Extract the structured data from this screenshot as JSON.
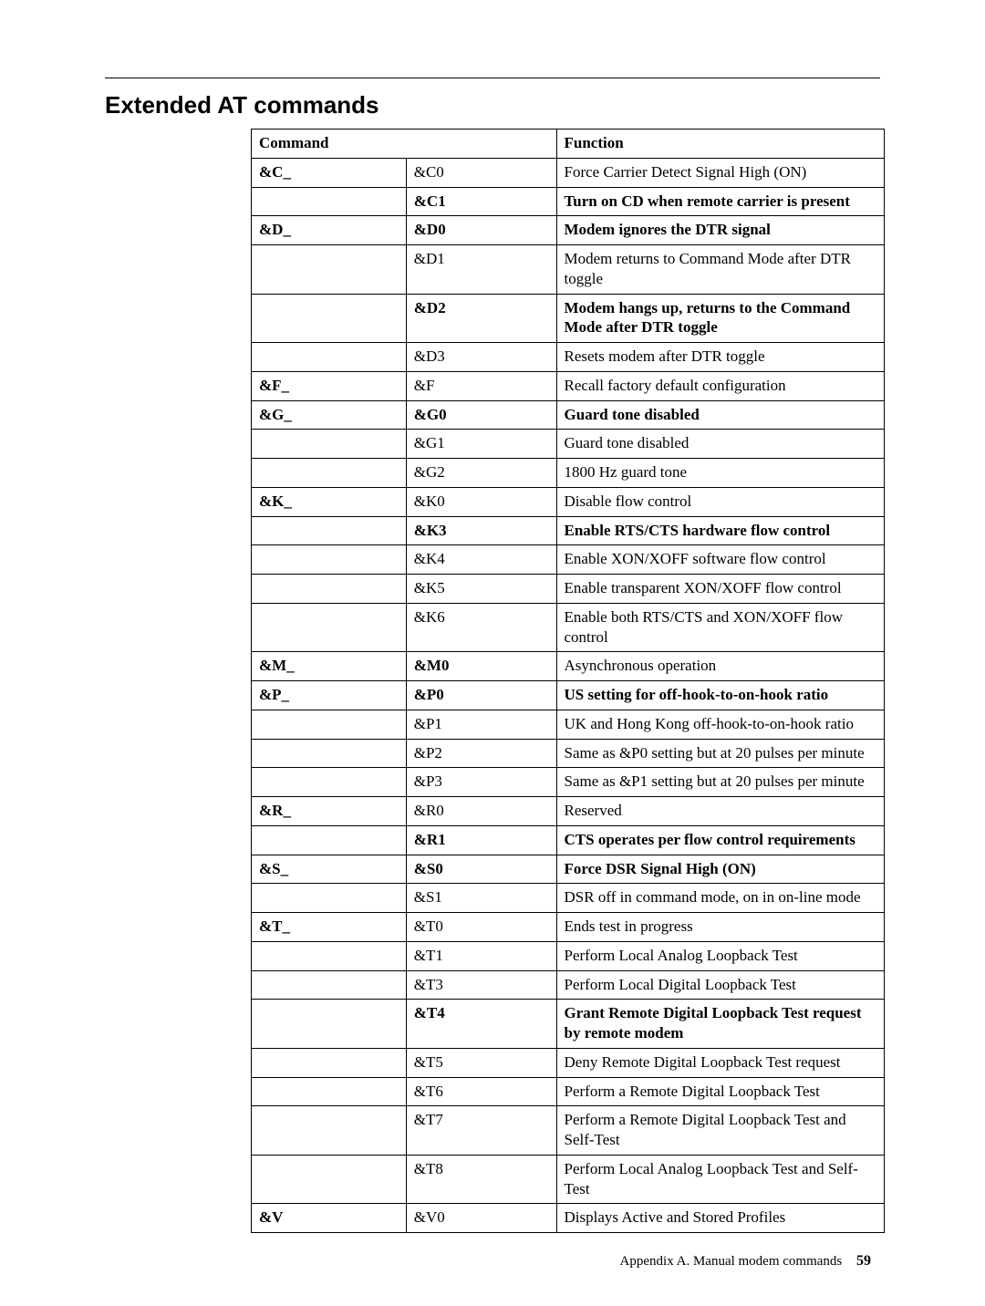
{
  "title": "Extended AT commands",
  "header": {
    "command": "Command",
    "function": "Function"
  },
  "rows": [
    {
      "c1": "&C_",
      "c1_bold": true,
      "c2": "&C0",
      "c2_bold": false,
      "c3": "Force Carrier Detect Signal High (ON)",
      "c3_bold": false
    },
    {
      "c1": "",
      "c1_bold": false,
      "c2": "&C1",
      "c2_bold": true,
      "c3": "Turn on CD when remote carrier is present",
      "c3_bold": true
    },
    {
      "c1": "&D_",
      "c1_bold": true,
      "c2": "&D0",
      "c2_bold": true,
      "c3": "Modem ignores the DTR signal",
      "c3_bold": true
    },
    {
      "c1": "",
      "c1_bold": false,
      "c2": "&D1",
      "c2_bold": false,
      "c3": "Modem returns to Command Mode after DTR toggle",
      "c3_bold": false
    },
    {
      "c1": "",
      "c1_bold": false,
      "c2": "&D2",
      "c2_bold": true,
      "c3": "Modem hangs up, returns to the Command Mode after DTR toggle",
      "c3_bold": true
    },
    {
      "c1": "",
      "c1_bold": false,
      "c2": "&D3",
      "c2_bold": false,
      "c3": "Resets modem after DTR toggle",
      "c3_bold": false
    },
    {
      "c1": "&F_",
      "c1_bold": true,
      "c2": "&F",
      "c2_bold": false,
      "c3": "Recall factory default configuration",
      "c3_bold": false
    },
    {
      "c1": "&G_",
      "c1_bold": true,
      "c2": "&G0",
      "c2_bold": true,
      "c3": "Guard tone disabled",
      "c3_bold": true
    },
    {
      "c1": "",
      "c1_bold": false,
      "c2": "&G1",
      "c2_bold": false,
      "c3": "Guard tone disabled",
      "c3_bold": false
    },
    {
      "c1": "",
      "c1_bold": false,
      "c2": "&G2",
      "c2_bold": false,
      "c3": "1800 Hz guard tone",
      "c3_bold": false
    },
    {
      "c1": "&K_",
      "c1_bold": true,
      "c2": "&K0",
      "c2_bold": false,
      "c3": "Disable flow control",
      "c3_bold": false
    },
    {
      "c1": "",
      "c1_bold": false,
      "c2": "&K3",
      "c2_bold": true,
      "c3": "Enable RTS/CTS hardware flow control",
      "c3_bold": true
    },
    {
      "c1": "",
      "c1_bold": false,
      "c2": "&K4",
      "c2_bold": false,
      "c3": "Enable XON/XOFF software flow control",
      "c3_bold": false
    },
    {
      "c1": "",
      "c1_bold": false,
      "c2": "&K5",
      "c2_bold": false,
      "c3": "Enable transparent XON/XOFF flow control",
      "c3_bold": false
    },
    {
      "c1": "",
      "c1_bold": false,
      "c2": "&K6",
      "c2_bold": false,
      "c3": "Enable both RTS/CTS and XON/XOFF flow control",
      "c3_bold": false
    },
    {
      "c1": "&M_",
      "c1_bold": true,
      "c2": "&M0",
      "c2_bold": true,
      "c3": "Asynchronous operation",
      "c3_bold": false
    },
    {
      "c1": "&P_",
      "c1_bold": true,
      "c2": "&P0",
      "c2_bold": true,
      "c3": "US setting for off-hook-to-on-hook ratio",
      "c3_bold": true
    },
    {
      "c1": "",
      "c1_bold": false,
      "c2": "&P1",
      "c2_bold": false,
      "c3": "UK and Hong Kong off-hook-to-on-hook ratio",
      "c3_bold": false
    },
    {
      "c1": "",
      "c1_bold": false,
      "c2": "&P2",
      "c2_bold": false,
      "c3": "Same as &P0 setting but at 20 pulses per minute",
      "c3_bold": false
    },
    {
      "c1": "",
      "c1_bold": false,
      "c2": "&P3",
      "c2_bold": false,
      "c3": "Same as &P1 setting but at 20 pulses per minute",
      "c3_bold": false
    },
    {
      "c1": "&R_",
      "c1_bold": true,
      "c2": "&R0",
      "c2_bold": false,
      "c3": "Reserved",
      "c3_bold": false
    },
    {
      "c1": "",
      "c1_bold": false,
      "c2": "&R1",
      "c2_bold": true,
      "c3": "CTS operates per flow control requirements",
      "c3_bold": true
    },
    {
      "c1": "&S_",
      "c1_bold": true,
      "c2": "&S0",
      "c2_bold": true,
      "c3": "Force DSR Signal High (ON)",
      "c3_bold": true
    },
    {
      "c1": "",
      "c1_bold": false,
      "c2": "&S1",
      "c2_bold": false,
      "c3": "DSR off in command mode, on in on-line mode",
      "c3_bold": false
    },
    {
      "c1": "&T_",
      "c1_bold": true,
      "c2": "&T0",
      "c2_bold": false,
      "c3": "Ends test in progress",
      "c3_bold": false
    },
    {
      "c1": "",
      "c1_bold": false,
      "c2": "&T1",
      "c2_bold": false,
      "c3": "Perform Local Analog Loopback Test",
      "c3_bold": false
    },
    {
      "c1": "",
      "c1_bold": false,
      "c2": "&T3",
      "c2_bold": false,
      "c3": "Perform Local Digital Loopback Test",
      "c3_bold": false
    },
    {
      "c1": "",
      "c1_bold": false,
      "c2": "&T4",
      "c2_bold": true,
      "c3": "Grant Remote Digital Loopback Test request by remote modem",
      "c3_bold": true
    },
    {
      "c1": "",
      "c1_bold": false,
      "c2": "&T5",
      "c2_bold": false,
      "c3": "Deny Remote Digital Loopback Test request",
      "c3_bold": false
    },
    {
      "c1": "",
      "c1_bold": false,
      "c2": "&T6",
      "c2_bold": false,
      "c3": "Perform a Remote Digital Loopback Test",
      "c3_bold": false
    },
    {
      "c1": "",
      "c1_bold": false,
      "c2": "&T7",
      "c2_bold": false,
      "c3": "Perform a Remote Digital Loopback Test and Self-Test",
      "c3_bold": false
    },
    {
      "c1": "",
      "c1_bold": false,
      "c2": "&T8",
      "c2_bold": false,
      "c3": "Perform Local Analog Loopback Test and Self-Test",
      "c3_bold": false
    },
    {
      "c1": "&V",
      "c1_bold": true,
      "c2": "&V0",
      "c2_bold": false,
      "c3": "Displays Active and Stored Profiles",
      "c3_bold": false
    }
  ],
  "footer": {
    "text": "Appendix A. Manual modem commands",
    "page": "59"
  }
}
